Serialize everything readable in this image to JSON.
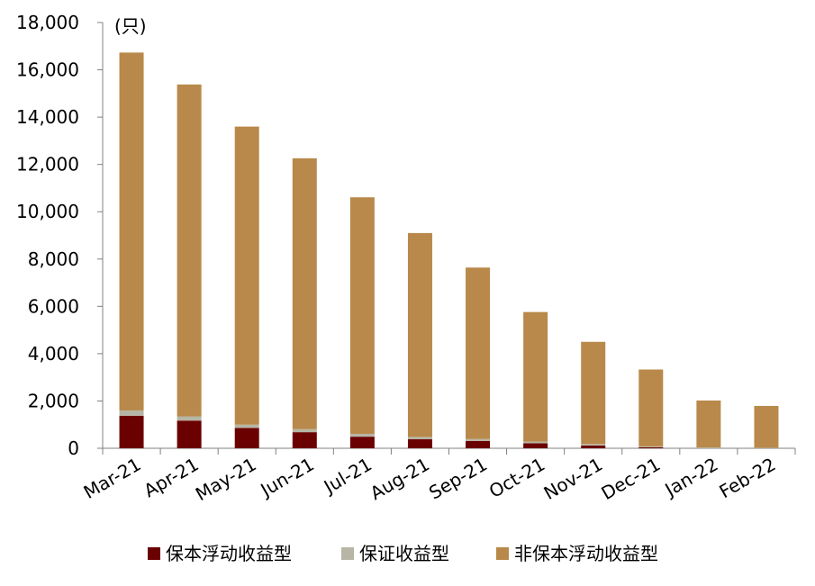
{
  "chart_data": {
    "type": "bar",
    "stacked": true,
    "unit_label": "(只)",
    "categories": [
      "Mar-21",
      "Apr-21",
      "May-21",
      "Jun-21",
      "Jul-21",
      "Aug-21",
      "Sep-21",
      "Oct-21",
      "Nov-21",
      "Dec-21",
      "Jan-22",
      "Feb-22"
    ],
    "series": [
      {
        "name": "保本浮动收益型",
        "color": "#6b0000",
        "values": [
          1370,
          1170,
          860,
          680,
          490,
          380,
          310,
          210,
          120,
          40,
          0,
          0
        ]
      },
      {
        "name": "保证收益型",
        "color": "#b7b5a5",
        "values": [
          230,
          180,
          140,
          130,
          120,
          100,
          80,
          70,
          60,
          40,
          30,
          20
        ]
      },
      {
        "name": "非保本浮动收益型",
        "color": "#b8894a",
        "values": [
          15130,
          14030,
          12600,
          11450,
          10000,
          8620,
          7250,
          5480,
          4320,
          3250,
          1990,
          1770
        ]
      }
    ],
    "y_ticks": [
      "0",
      "2,000",
      "4,000",
      "6,000",
      "8,000",
      "10,000",
      "12,000",
      "14,000",
      "16,000",
      "18,000"
    ],
    "ylim": [
      0,
      18000
    ],
    "grid": false,
    "legend_position": "bottom"
  }
}
